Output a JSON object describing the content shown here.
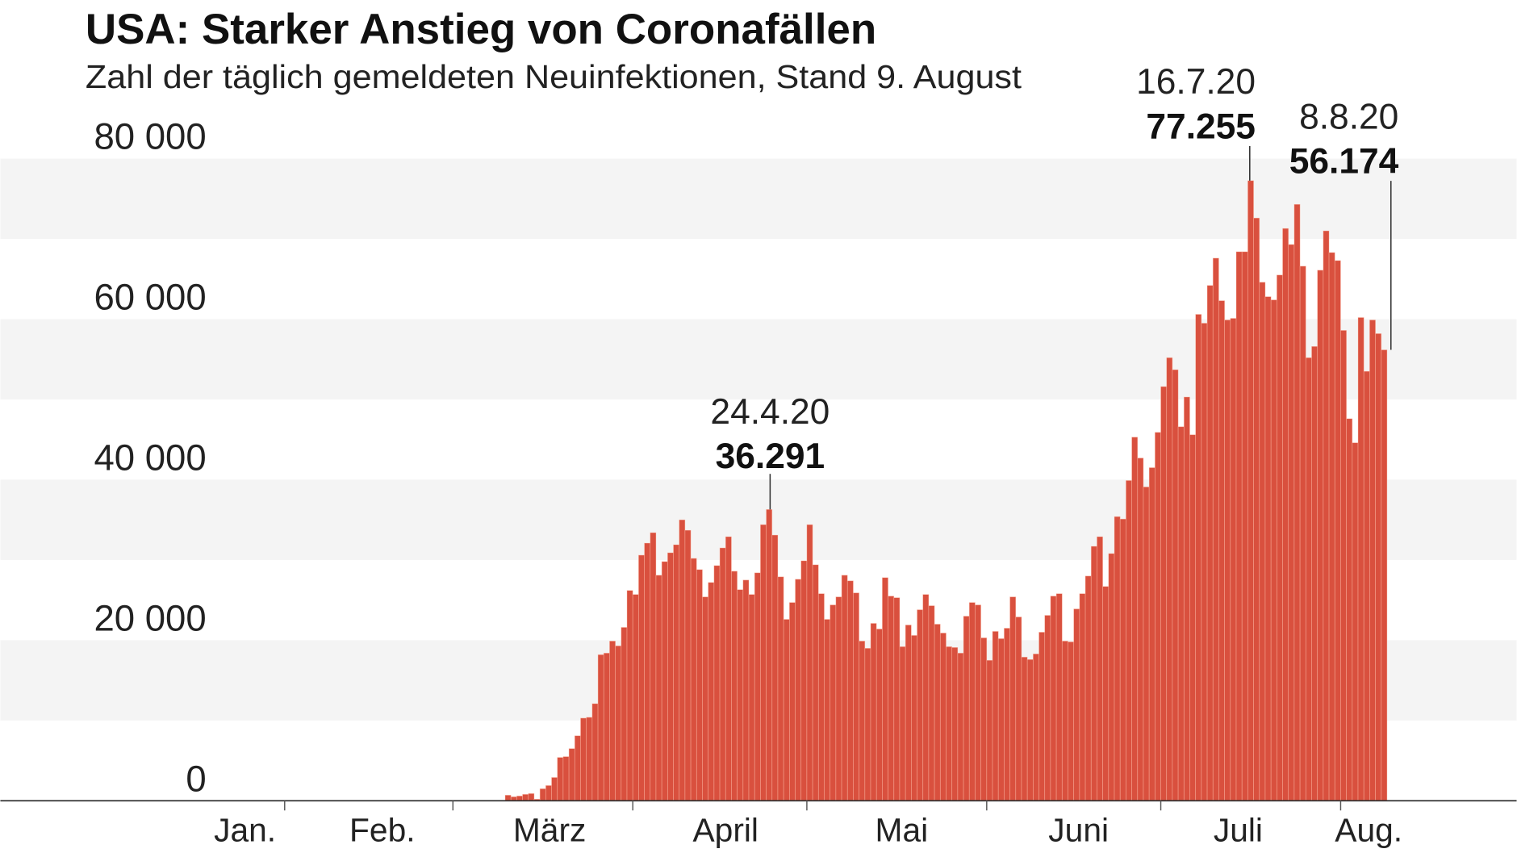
{
  "header": {
    "title": "USA: Starker Anstieg von Coronafällen",
    "subtitle": "Zahl der täglich gemeldeten Neuinfektionen, Stand 9. August"
  },
  "chart_data": {
    "type": "bar",
    "title": "USA: Starker Anstieg von Coronafällen",
    "subtitle": "Zahl der täglich gemeldeten Neuinfektionen, Stand 9. August",
    "xlabel": "",
    "ylabel": "",
    "ylim": [
      0,
      80000
    ],
    "grid": "alternating horizontal bands",
    "bar_color": "#d9503e",
    "start_date": "2020-03-01",
    "end_date": "2020-08-08",
    "y_ticks": [
      {
        "value": 0,
        "label": "0"
      },
      {
        "value": 20000,
        "label": "20 000"
      },
      {
        "value": 40000,
        "label": "40 000"
      },
      {
        "value": 60000,
        "label": "60 000"
      },
      {
        "value": 80000,
        "label": "80 000"
      }
    ],
    "x_labels": [
      "Jan.",
      "Feb.",
      "März",
      "April",
      "Mai",
      "Juni",
      "Juli",
      "Aug."
    ],
    "values": [
      0,
      0,
      0,
      0,
      0,
      0,
      0,
      0,
      0,
      700,
      500,
      600,
      800,
      900,
      200,
      1500,
      1900,
      2900,
      5400,
      5500,
      6500,
      8100,
      10300,
      10400,
      12100,
      18200,
      18400,
      19900,
      19300,
      21600,
      26200,
      25700,
      30600,
      32100,
      33400,
      28100,
      29800,
      30900,
      31900,
      35000,
      33700,
      30200,
      28800,
      25400,
      27200,
      29300,
      31500,
      32900,
      28600,
      26300,
      27500,
      25700,
      28400,
      34400,
      36291,
      33100,
      27900,
      22600,
      24700,
      27600,
      29900,
      34400,
      29400,
      25800,
      22600,
      24400,
      25400,
      28100,
      27400,
      25900,
      19900,
      19000,
      22100,
      21400,
      27800,
      25500,
      25300,
      19200,
      21900,
      20600,
      23800,
      25700,
      24300,
      22000,
      20900,
      19200,
      19100,
      18400,
      23000,
      24700,
      24400,
      20300,
      17500,
      21100,
      20200,
      21500,
      25400,
      22900,
      17900,
      17600,
      18300,
      21000,
      23100,
      25500,
      25800,
      19900,
      19800,
      23900,
      25800,
      28000,
      31700,
      32900,
      26700,
      30800,
      35400,
      35100,
      39900,
      45300,
      42700,
      39100,
      41500,
      45900,
      51600,
      55200,
      53700,
      46600,
      50300,
      45600,
      60600,
      59500,
      64200,
      67600,
      62300,
      59900,
      60100,
      68400,
      68400,
      77255,
      72600,
      64600,
      62800,
      62400,
      65500,
      71300,
      69300,
      74300,
      66600,
      55200,
      56600,
      66100,
      71000,
      68300,
      67300,
      58600,
      47600,
      44600,
      60200,
      53500,
      59900,
      58200,
      56174
    ],
    "annotations": [
      {
        "date": "24.4.20",
        "value_label": "36.291",
        "value": 36291
      },
      {
        "date": "16.7.20",
        "value_label": "77.255",
        "value": 77255
      },
      {
        "date": "8.8.20",
        "value_label": "56.174",
        "value": 56174
      }
    ]
  }
}
